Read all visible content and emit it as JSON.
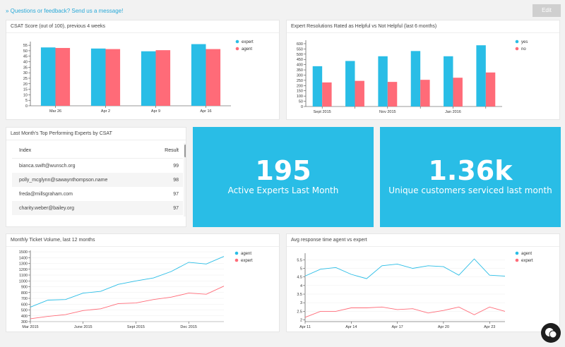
{
  "header": {
    "feedback_text": "» Questions or feedback? Send us a message!",
    "edit_label": "Edit"
  },
  "colors": {
    "blue": "#29bde6",
    "red": "#ff6b78"
  },
  "csat_card": {
    "title": "CSAT Score (out of 100), previous 4 weeks",
    "chart_data": {
      "type": "bar",
      "categories": [
        "Mar 26",
        "Apr 2",
        "Apr 9",
        "Apr 16"
      ],
      "series": [
        {
          "name": "expert",
          "values": [
            53,
            52,
            49.5,
            56
          ]
        },
        {
          "name": "agent",
          "values": [
            52.5,
            51.5,
            50.5,
            51.5
          ]
        }
      ],
      "yticks": [
        "0",
        "5",
        "10",
        "15",
        "20",
        "25",
        "30",
        "35",
        "40",
        "45",
        "50",
        "55"
      ],
      "ylim": [
        0,
        57
      ]
    }
  },
  "resolutions_card": {
    "title": "Expert Resolutions Rated as Helpful vs Not Helpful (last 6 months)",
    "chart_data": {
      "type": "bar",
      "categories": [
        "Sept 2015",
        "",
        "Nov 2015",
        "",
        "Jan 2016",
        ""
      ],
      "series": [
        {
          "name": "yes",
          "values": [
            385,
            435,
            480,
            530,
            480,
            585
          ]
        },
        {
          "name": "no",
          "values": [
            230,
            245,
            235,
            255,
            275,
            325
          ]
        }
      ],
      "yticks": [
        "0",
        "50",
        "100",
        "150",
        "200",
        "250",
        "300",
        "350",
        "400",
        "450",
        "500",
        "550",
        "600"
      ],
      "ylim": [
        0,
        620
      ]
    }
  },
  "top_experts": {
    "title": "Last Month's Top Performing Experts by CSAT",
    "col_index": "Index",
    "col_result": "Result",
    "rows": [
      {
        "email": "bianca.swift@wunsch.org",
        "result": "99"
      },
      {
        "email": "polly_mcglynn@sawaynthompson.name",
        "result": "98"
      },
      {
        "email": "freda@millsgraham.com",
        "result": "97"
      },
      {
        "email": "charity.weber@bailey.org",
        "result": "97"
      }
    ]
  },
  "stats": {
    "active_experts": {
      "value": "195",
      "label": "Active Experts Last Month"
    },
    "unique_customers": {
      "value": "1.36k",
      "label": "Unique customers serviced last month"
    }
  },
  "ticket_volume": {
    "title": "Monthly Ticket Volume, last 12 months",
    "chart_data": {
      "type": "line",
      "xtick_labels": [
        "Mar 2015",
        "June 2015",
        "Sept 2015",
        "Dec 2015"
      ],
      "xtick_positions": [
        0,
        3,
        6,
        9
      ],
      "series": [
        {
          "name": "agent",
          "values": [
            550,
            670,
            680,
            790,
            820,
            940,
            1000,
            1050,
            1160,
            1320,
            1290,
            1420
          ]
        },
        {
          "name": "expert",
          "values": [
            350,
            390,
            420,
            490,
            520,
            610,
            620,
            680,
            720,
            790,
            770,
            910
          ]
        }
      ],
      "yticks": [
        "300",
        "400",
        "500",
        "600",
        "700",
        "800",
        "900",
        "1000",
        "1100",
        "1200",
        "1300",
        "1400",
        "1500"
      ],
      "ylim": [
        300,
        1500
      ]
    }
  },
  "response_time": {
    "title": "Avg response time agent vs expert",
    "chart_data": {
      "type": "line",
      "xtick_labels": [
        "Apr 11",
        "Apr 14",
        "Apr 17",
        "Apr 20",
        "Apr 23"
      ],
      "xtick_positions": [
        0,
        3,
        6,
        9,
        12
      ],
      "series": [
        {
          "name": "agent",
          "values": [
            4.55,
            4.95,
            5.05,
            4.65,
            4.4,
            5.15,
            5.25,
            5.0,
            5.15,
            5.1,
            4.6,
            5.55,
            4.6,
            4.55
          ]
        },
        {
          "name": "expert",
          "values": [
            2.15,
            2.5,
            2.5,
            2.7,
            2.7,
            2.75,
            2.6,
            2.65,
            2.4,
            2.55,
            2.75,
            2.3,
            2.75,
            2.5
          ]
        }
      ],
      "yticks": [
        "2",
        "2.5",
        "3",
        "3.5",
        "4",
        "4.5",
        "5",
        "5.5"
      ],
      "ylim": [
        1.9,
        5.8
      ]
    }
  },
  "chat": {
    "icon": "chat-bubble-icon"
  }
}
